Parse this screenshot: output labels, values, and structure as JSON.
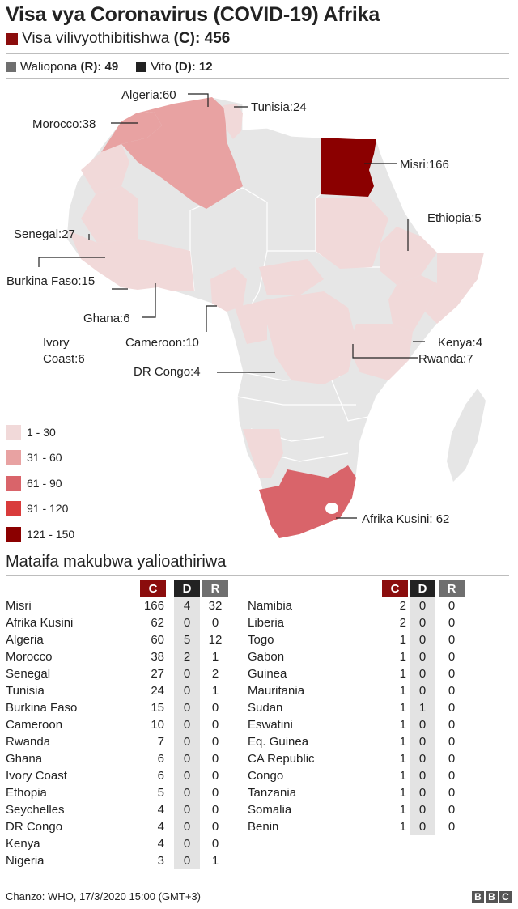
{
  "title": "Visa vya Coronavirus (COVID-19) Afrika",
  "cases_label": "Visa vilivyothibitishwa",
  "cases_code": "(C)",
  "cases_value": ": 456",
  "recovered_label": "Waliopona",
  "recovered_code": "(R)",
  "recovered_value": ": 49",
  "deaths_label": "Vifo",
  "deaths_code": "(D)",
  "deaths_value": ": 12",
  "colors": {
    "cases": "#8b0d0d",
    "recovered": "#6f6f6f",
    "deaths": "#222222",
    "no_data": "#e6e6e6",
    "band1": "#f1d9d9",
    "band2": "#e8a2a2",
    "band3": "#d9646a",
    "band4": "#d93b3b",
    "band5": "#8b0000"
  },
  "map_labels": {
    "algeria": "Algeria:60",
    "tunisia": "Tunisia:24",
    "morocco": "Morocco:38",
    "egypt": "Misri:166",
    "ethiopia": "Ethiopia:5",
    "senegal": "Senegal:27",
    "burkina": "Burkina Faso:15",
    "ghana": "Ghana:6",
    "ivory_1": "Ivory",
    "ivory_2": "Coast:6",
    "cameroon": "Cameroon:10",
    "kenya": "Kenya:4",
    "rwanda": "Rwanda:7",
    "drc": "DR Congo:4",
    "south_africa": "Afrika Kusini: 62"
  },
  "legend": [
    {
      "label": "1 - 30",
      "color": "#f1d9d9"
    },
    {
      "label": "31 - 60",
      "color": "#e8a2a2"
    },
    {
      "label": "61 - 90",
      "color": "#d9646a"
    },
    {
      "label": "91 - 120",
      "color": "#d93b3b"
    },
    {
      "label": "121 - 150",
      "color": "#8b0000"
    }
  ],
  "table_title": "Mataifa makubwa yalioathiriwa",
  "headers": {
    "c": "C",
    "d": "D",
    "r": "R"
  },
  "table_left": [
    {
      "country": "Misri",
      "c": "166",
      "d": "4",
      "r": "32"
    },
    {
      "country": "Afrika Kusini",
      "c": "62",
      "d": "0",
      "r": "0"
    },
    {
      "country": "Algeria",
      "c": "60",
      "d": "5",
      "r": "12"
    },
    {
      "country": "Morocco",
      "c": "38",
      "d": "2",
      "r": "1"
    },
    {
      "country": "Senegal",
      "c": "27",
      "d": "0",
      "r": "2"
    },
    {
      "country": "Tunisia",
      "c": "24",
      "d": "0",
      "r": "1"
    },
    {
      "country": "Burkina Faso",
      "c": "15",
      "d": "0",
      "r": "0"
    },
    {
      "country": "Cameroon",
      "c": "10",
      "d": "0",
      "r": "0"
    },
    {
      "country": "Rwanda",
      "c": "7",
      "d": "0",
      "r": "0"
    },
    {
      "country": "Ghana",
      "c": "6",
      "d": "0",
      "r": "0"
    },
    {
      "country": "Ivory Coast",
      "c": "6",
      "d": "0",
      "r": "0"
    },
    {
      "country": "Ethopia",
      "c": "5",
      "d": "0",
      "r": "0"
    },
    {
      "country": "Seychelles",
      "c": "4",
      "d": "0",
      "r": "0"
    },
    {
      "country": "DR Congo",
      "c": "4",
      "d": "0",
      "r": "0"
    },
    {
      "country": "Kenya",
      "c": "4",
      "d": "0",
      "r": "0"
    },
    {
      "country": "Nigeria",
      "c": "3",
      "d": "0",
      "r": "1"
    }
  ],
  "table_right": [
    {
      "country": "Namibia",
      "c": "2",
      "d": "0",
      "r": "0"
    },
    {
      "country": "Liberia",
      "c": "2",
      "d": "0",
      "r": "0"
    },
    {
      "country": "Togo",
      "c": "1",
      "d": "0",
      "r": "0"
    },
    {
      "country": "Gabon",
      "c": "1",
      "d": "0",
      "r": "0"
    },
    {
      "country": "Guinea",
      "c": "1",
      "d": "0",
      "r": "0"
    },
    {
      "country": "Mauritania",
      "c": "1",
      "d": "0",
      "r": "0"
    },
    {
      "country": "Sudan",
      "c": "1",
      "d": "1",
      "r": "0"
    },
    {
      "country": "Eswatini",
      "c": "1",
      "d": "0",
      "r": "0"
    },
    {
      "country": "Eq. Guinea",
      "c": "1",
      "d": "0",
      "r": "0"
    },
    {
      "country": "CA Republic",
      "c": "1",
      "d": "0",
      "r": "0"
    },
    {
      "country": "Congo",
      "c": "1",
      "d": "0",
      "r": "0"
    },
    {
      "country": "Tanzania",
      "c": "1",
      "d": "0",
      "r": "0"
    },
    {
      "country": "Somalia",
      "c": "1",
      "d": "0",
      "r": "0"
    },
    {
      "country": "Benin",
      "c": "1",
      "d": "0",
      "r": "0"
    }
  ],
  "source": "Chanzo: WHO, 17/3/2020  15:00 (GMT+3)",
  "logo_letters": [
    "B",
    "B",
    "C"
  ]
}
